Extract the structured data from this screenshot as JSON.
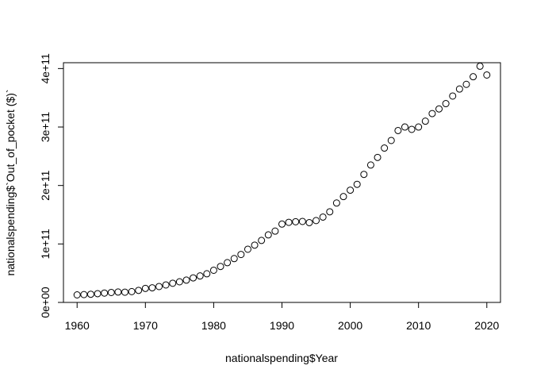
{
  "chart_data": {
    "type": "scatter",
    "title": "",
    "xlabel": "nationalspending$Year",
    "ylabel": "nationalspending$`Out_of_pocket ($)`",
    "xlim": [
      1958,
      2022
    ],
    "ylim": [
      0,
      410000000000
    ],
    "grid": false,
    "x_ticks": [
      1960,
      1970,
      1980,
      1990,
      2000,
      2010,
      2020
    ],
    "x_tick_labels": [
      "1960",
      "1970",
      "1980",
      "1990",
      "2000",
      "2010",
      "2020"
    ],
    "y_ticks": [
      0,
      100000000000,
      200000000000,
      300000000000,
      400000000000
    ],
    "y_tick_labels": [
      "0e+00",
      "1e+11",
      "2e+11",
      "3e+11",
      "4e+11"
    ],
    "series": [
      {
        "x": [
          1960,
          1961,
          1962,
          1963,
          1964,
          1965,
          1966,
          1967,
          1968,
          1969,
          1970,
          1971,
          1972,
          1973,
          1974,
          1975,
          1976,
          1977,
          1978,
          1979,
          1980,
          1981,
          1982,
          1983,
          1984,
          1985,
          1986,
          1987,
          1988,
          1989,
          1990,
          1991,
          1992,
          1993,
          1994,
          1995,
          1996,
          1997,
          1998,
          1999,
          2000,
          2001,
          2002,
          2003,
          2004,
          2005,
          2006,
          2007,
          2008,
          2009,
          2010,
          2011,
          2012,
          2013,
          2014,
          2015,
          2016,
          2017,
          2018,
          2019,
          2020
        ],
        "y": [
          12900000000,
          13400000000,
          14000000000,
          15000000000,
          16000000000,
          17000000000,
          17800000000,
          17500000000,
          18500000000,
          20600000000,
          24000000000,
          25000000000,
          27200000000,
          29900000000,
          32800000000,
          35300000000,
          38100000000,
          42000000000,
          45300000000,
          49000000000,
          55000000000,
          61500000000,
          68000000000,
          75000000000,
          82000000000,
          91000000000,
          98000000000,
          106000000000,
          115500000000,
          122000000000,
          134000000000,
          137000000000,
          138000000000,
          138500000000,
          136500000000,
          140000000000,
          146000000000,
          155000000000,
          170000000000,
          181000000000,
          192000000000,
          202000000000,
          219000000000,
          235000000000,
          248000000000,
          264000000000,
          277000000000,
          294000000000,
          300000000000,
          296000000000,
          300000000000,
          310000000000,
          323000000000,
          331000000000,
          340000000000,
          353000000000,
          365000000000,
          373000000000,
          386000000000,
          404000000000,
          389000000000
        ]
      }
    ]
  }
}
